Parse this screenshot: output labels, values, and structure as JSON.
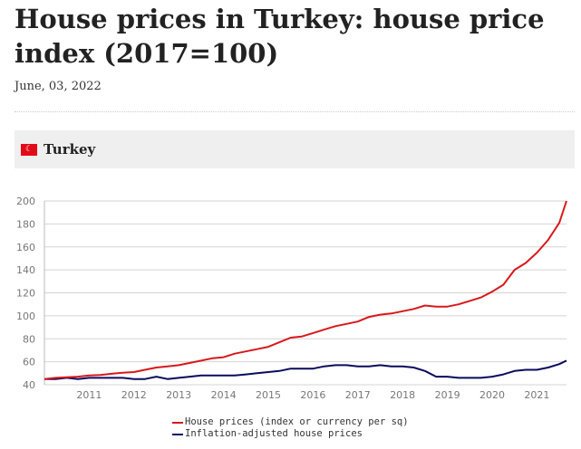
{
  "title": "House prices in Turkey: house price index (2017=100)",
  "date": "June, 03, 2022",
  "country": {
    "name": "Turkey",
    "flag_icon": "turkey-flag-icon"
  },
  "chart_data": {
    "type": "line",
    "title": "",
    "xlabel": "",
    "ylabel": "",
    "xlim": [
      2010.0,
      2021.66
    ],
    "ylim": [
      40,
      200
    ],
    "yticks": [
      40,
      60,
      80,
      100,
      120,
      140,
      160,
      180,
      200
    ],
    "xticks": [
      2011,
      2012,
      2013,
      2014,
      2015,
      2016,
      2017,
      2018,
      2019,
      2020,
      2021
    ],
    "grid": "horizontal",
    "legend": "bottom",
    "x": [
      2010,
      2010.25,
      2010.5,
      2010.75,
      2011,
      2011.25,
      2011.5,
      2011.75,
      2012,
      2012.25,
      2012.5,
      2012.75,
      2013,
      2013.25,
      2013.5,
      2013.75,
      2014,
      2014.25,
      2014.5,
      2014.75,
      2015,
      2015.25,
      2015.5,
      2015.75,
      2016,
      2016.25,
      2016.5,
      2016.75,
      2017,
      2017.25,
      2017.5,
      2017.75,
      2018,
      2018.25,
      2018.5,
      2018.75,
      2019,
      2019.25,
      2019.5,
      2019.75,
      2020,
      2020.25,
      2020.5,
      2020.75,
      2021,
      2021.25,
      2021.5,
      2021.66
    ],
    "series": [
      {
        "name": "House prices (index or currency per sq)",
        "color": "#d7191c",
        "values": [
          45,
          46,
          46.5,
          47,
          48,
          48.5,
          49.5,
          50.5,
          51,
          53,
          55,
          56,
          57,
          59,
          61,
          63,
          64,
          67,
          69,
          71,
          73,
          77,
          81,
          82,
          85,
          88,
          91,
          93,
          95,
          99,
          101,
          102,
          104,
          106,
          109,
          108,
          108,
          110,
          113,
          116,
          121,
          127,
          140,
          146,
          155,
          166,
          181,
          200
        ]
      },
      {
        "name": "Inflation-adjusted house prices",
        "color": "#0b0b5e",
        "values": [
          45,
          45,
          46,
          45,
          46,
          46,
          46,
          46,
          45,
          45,
          47,
          45,
          46,
          47,
          48,
          48,
          48,
          48,
          49,
          50,
          51,
          52,
          54,
          54,
          54,
          56,
          57,
          57,
          56,
          56,
          57,
          56,
          56,
          55,
          52,
          47,
          47,
          46,
          46,
          46,
          47,
          49,
          52,
          53,
          53,
          55,
          58,
          61
        ]
      }
    ]
  }
}
